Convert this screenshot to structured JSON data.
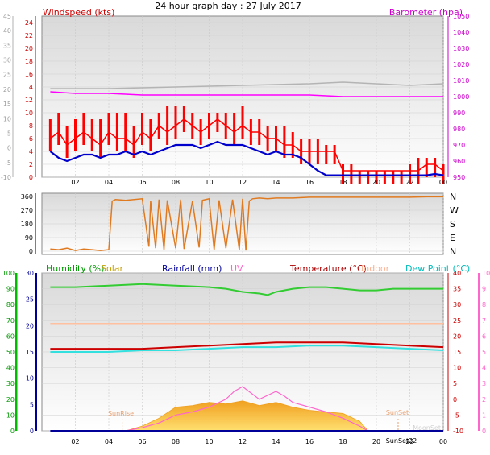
{
  "title": "24 hour graph day : 27 July 2017",
  "colors": {
    "wind": "#ff0000",
    "wind_avg": "#0000cc",
    "barometer": "#ff00ff",
    "wind_dir": "#e07a20",
    "humidity": "#33cc33",
    "solar": "#ffcc00",
    "rainfall": "#000099",
    "uv": "#ff66cc",
    "temperature": "#cc0000",
    "indoor": "#ffc0a0",
    "dew_point": "#33e0e0",
    "grey_trace": "#b4b4b4"
  },
  "x_ticks": [
    "02",
    "04",
    "06",
    "08",
    "10",
    "12",
    "14",
    "16",
    "18",
    "20",
    "22",
    "00"
  ],
  "panel_wind": {
    "left_label": "Windspeed (kts)",
    "right_label": "Barometer (hpa)",
    "left_ticks": [
      "24",
      "22",
      "20",
      "18",
      "16",
      "14",
      "12",
      "10",
      "8",
      "6",
      "4",
      "2",
      "0"
    ],
    "right_ticks": [
      "1050",
      "1040",
      "1030",
      "1020",
      "1010",
      "1000",
      "990",
      "980",
      "970",
      "960",
      "950"
    ],
    "grey_ticks": [
      "45",
      "40",
      "35",
      "30",
      "25",
      "20",
      "15",
      "10",
      "5",
      "0",
      "-5",
      "-10"
    ]
  },
  "panel_dir": {
    "left_ticks": [
      "360",
      "270",
      "180",
      "90",
      "0"
    ],
    "right_ticks": [
      "N",
      "W",
      "S",
      "E",
      "N"
    ]
  },
  "panel_weather": {
    "labels": {
      "humidity": "Humidity (%)",
      "solar": "Solar",
      "rainfall": "Rainfall (mm)",
      "uv": "UV",
      "temperature": "Temperature (°C)",
      "indoor": "Indoor",
      "dew_point": "Dew Point (°C)"
    },
    "humidity_ticks": [
      "100",
      "90",
      "80",
      "70",
      "60",
      "50",
      "40",
      "30",
      "20",
      "10",
      "0"
    ],
    "rain_ticks": [
      "30",
      "25",
      "20",
      "15",
      "10",
      "5",
      "0"
    ],
    "temp_ticks": [
      "40",
      "35",
      "30",
      "25",
      "20",
      "15",
      "10",
      "5",
      "0",
      "-5",
      "-10"
    ],
    "uv_ticks": [
      "10",
      "9",
      "8",
      "7",
      "6",
      "5",
      "4",
      "3",
      "2",
      "1",
      "0"
    ],
    "annotations": {
      "sunrise": "SunRise",
      "sunset": "SunSet",
      "sunset_time": "SunSet22",
      "moonset": "MoonSet"
    }
  },
  "chart_data": [
    {
      "type": "line",
      "x_unit": "hour",
      "xlim": [
        0,
        24
      ],
      "ylim": [
        0,
        25
      ],
      "y2lim": [
        950,
        1050
      ],
      "series": [
        {
          "name": "Windspeed (kts)",
          "axis": "left",
          "x": [
            0.5,
            1,
            1.5,
            2,
            2.5,
            3,
            3.5,
            4,
            4.5,
            5,
            5.5,
            6,
            6.5,
            7,
            7.5,
            8,
            8.5,
            9,
            9.5,
            10,
            10.5,
            11,
            11.5,
            12,
            12.5,
            13,
            13.5,
            14,
            14.5,
            15,
            15.5,
            16,
            16.5,
            17,
            17.5,
            18,
            18.5,
            19,
            19.5,
            20,
            20.5,
            21,
            21.5,
            22,
            22.5,
            23,
            23.5,
            24
          ],
          "y": [
            6,
            7,
            5,
            6,
            7,
            6,
            5,
            7,
            6,
            6,
            5,
            7,
            6,
            8,
            7,
            8,
            9,
            8,
            7,
            8,
            9,
            8,
            7,
            8,
            7,
            7,
            6,
            6,
            5,
            5,
            4,
            4,
            4,
            4,
            4,
            1,
            1,
            1,
            1,
            1,
            1,
            1,
            1,
            1,
            1,
            2,
            2,
            1
          ],
          "y_peak": [
            9,
            10,
            8,
            9,
            10,
            9,
            9,
            10,
            10,
            10,
            8,
            10,
            9,
            10,
            11,
            11,
            11,
            10,
            9,
            10,
            10,
            10,
            10,
            11,
            9,
            9,
            8,
            8,
            8,
            7,
            6,
            6,
            6,
            5,
            5,
            2,
            2,
            1,
            1,
            1,
            1,
            1,
            1,
            2,
            3,
            3,
            3,
            2
          ]
        },
        {
          "name": "Average wind (kts)",
          "axis": "left",
          "x": [
            0.5,
            1,
            1.5,
            2,
            2.5,
            3,
            3.5,
            4,
            4.5,
            5,
            5.5,
            6,
            6.5,
            7,
            7.5,
            8,
            8.5,
            9,
            9.5,
            10,
            10.5,
            11,
            11.5,
            12,
            12.5,
            13,
            13.5,
            14,
            14.5,
            15,
            15.5,
            16,
            16.5,
            17,
            17.5,
            18,
            18.5,
            19,
            19.5,
            20,
            20.5,
            21,
            21.5,
            22,
            22.5,
            23,
            23.5,
            24
          ],
          "y": [
            4,
            3,
            2.5,
            3,
            3.5,
            3.5,
            3,
            3.5,
            3.5,
            4,
            3.5,
            4,
            3.5,
            4,
            4.5,
            5,
            5,
            5,
            4.5,
            5,
            5.5,
            5,
            5,
            5,
            4.5,
            4,
            3.5,
            4,
            3.5,
            3.5,
            3,
            2,
            1,
            0.3,
            0.3,
            0.3,
            0.3,
            0.3,
            0.3,
            0.3,
            0.3,
            0.3,
            0.3,
            0.3,
            0.3,
            0.3,
            0.5,
            0.3
          ]
        },
        {
          "name": "Barometer (hpa)",
          "axis": "right",
          "x": [
            0.5,
            2,
            4,
            6,
            8,
            10,
            12,
            14,
            16,
            18,
            20,
            22,
            24
          ],
          "y": [
            1003,
            1002,
            1002,
            1001,
            1001,
            1001,
            1001,
            1001,
            1001,
            1000,
            1000,
            1000,
            1000
          ]
        }
      ]
    },
    {
      "type": "line",
      "x_unit": "hour",
      "xlim": [
        0,
        24
      ],
      "ylim": [
        0,
        360
      ],
      "series": [
        {
          "name": "Wind direction",
          "x": [
            0.5,
            1,
            1.5,
            2,
            2.5,
            3,
            3.5,
            4,
            4.2,
            4.4,
            5,
            6,
            6.4,
            6.5,
            6.8,
            7,
            7.3,
            7.5,
            8,
            8.3,
            8.5,
            9,
            9.4,
            9.6,
            10,
            10.3,
            10.6,
            11,
            11.4,
            11.8,
            12,
            12.2,
            12.4,
            12.6,
            13,
            13.5,
            14,
            15,
            16,
            17,
            18,
            19,
            20,
            21,
            22,
            23,
            24
          ],
          "y": [
            15,
            10,
            20,
            5,
            15,
            10,
            5,
            10,
            330,
            340,
            335,
            345,
            30,
            330,
            20,
            340,
            10,
            335,
            20,
            340,
            15,
            330,
            25,
            335,
            345,
            10,
            335,
            20,
            340,
            10,
            345,
            5,
            330,
            345,
            350,
            345,
            350,
            350,
            355,
            355,
            355,
            355,
            355,
            355,
            355,
            358,
            358
          ]
        }
      ]
    },
    {
      "type": "line",
      "x_unit": "hour",
      "xlim": [
        0,
        24
      ],
      "series": [
        {
          "name": "Humidity (%)",
          "axis": "humidity",
          "x": [
            0.5,
            2,
            4,
            6,
            8,
            10,
            11,
            12,
            13,
            13.5,
            14,
            15,
            16,
            17,
            18,
            19,
            20,
            21,
            22,
            23,
            24
          ],
          "y": [
            91,
            91,
            92,
            93,
            92,
            91,
            90,
            88,
            87,
            86,
            88,
            90,
            91,
            91,
            90,
            89,
            89,
            90,
            90,
            90,
            90
          ]
        },
        {
          "name": "Temperature (°C)",
          "axis": "temperature",
          "x": [
            0.5,
            2,
            4,
            6,
            8,
            10,
            12,
            14,
            16,
            18,
            20,
            22,
            24
          ],
          "y": [
            16,
            16,
            16,
            16,
            16.5,
            17,
            17.5,
            18,
            18,
            18,
            17.5,
            17,
            16.5
          ]
        },
        {
          "name": "Dew Point (°C)",
          "axis": "temperature",
          "x": [
            0.5,
            2,
            4,
            6,
            8,
            10,
            12,
            14,
            16,
            18,
            20,
            22,
            24
          ],
          "y": [
            15,
            15,
            15,
            15.5,
            15.5,
            16,
            16.5,
            16.5,
            17,
            17,
            16.5,
            16,
            15.5
          ]
        },
        {
          "name": "Indoor",
          "axis": "temperature",
          "x": [
            0.5,
            24
          ],
          "y": [
            24,
            24
          ]
        },
        {
          "name": "UV",
          "axis": "uv",
          "x": [
            5,
            6,
            7,
            8,
            9,
            10,
            11,
            11.5,
            12,
            13,
            14,
            14.5,
            15,
            16,
            17,
            18,
            19,
            19.5
          ],
          "y": [
            0,
            0.2,
            0.5,
            1,
            1.2,
            1.5,
            2,
            2.5,
            2.8,
            2,
            2.5,
            2.2,
            1.8,
            1.5,
            1.2,
            0.8,
            0.3,
            0
          ]
        },
        {
          "name": "Solar",
          "axis": "uv",
          "kind": "area",
          "x": [
            5,
            6,
            7,
            8,
            9,
            10,
            11,
            12,
            13,
            14,
            15,
            16,
            17,
            18,
            19,
            19.5
          ],
          "y": [
            0,
            0.3,
            0.8,
            1.5,
            1.6,
            1.8,
            1.7,
            1.9,
            1.6,
            1.8,
            1.5,
            1.3,
            1.2,
            1.1,
            0.6,
            0
          ]
        },
        {
          "name": "Rainfall (mm)",
          "axis": "rain",
          "x": [
            0.5,
            24
          ],
          "y": [
            0,
            0
          ]
        }
      ]
    }
  ]
}
